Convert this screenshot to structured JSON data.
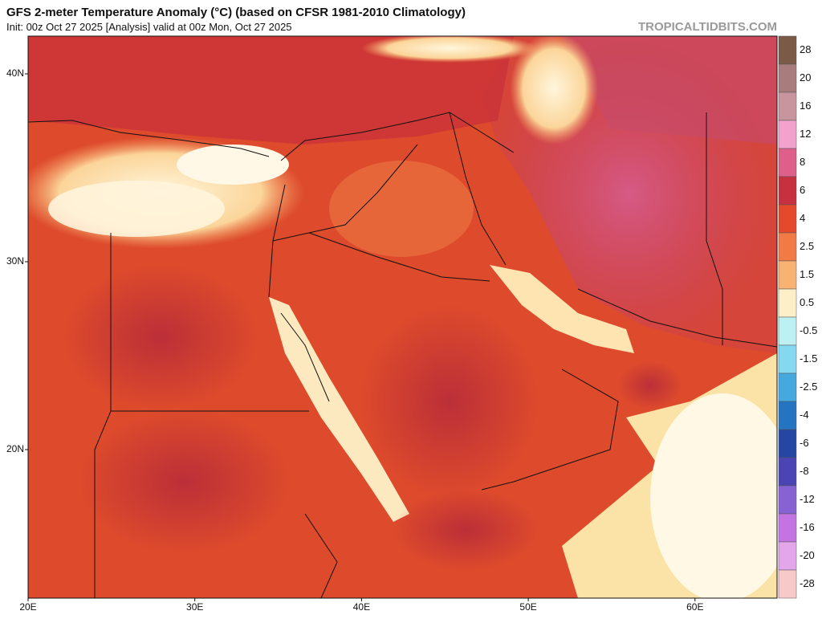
{
  "header": {
    "title": "GFS 2-meter Temperature Anomaly (°C) (based on CFSR 1981-2010 Climatology)",
    "subtitle": "Init: 00z Oct 27 2025  [Analysis]   valid at 00z Mon, Oct 27 2025",
    "watermark": "TROPICALTIDBITS.COM"
  },
  "map": {
    "latitude_labels": [
      "40N",
      "30N",
      "20N"
    ],
    "longitude_labels": [
      "20E",
      "30E",
      "40E",
      "50E",
      "60E"
    ]
  },
  "colorbar": {
    "levels": [
      28,
      20,
      16,
      12,
      8,
      6,
      4,
      2.5,
      1.5,
      0.5,
      -0.5,
      -1.5,
      -2.5,
      -4,
      -6,
      -8,
      -12,
      -16,
      -20,
      -28
    ],
    "colors": [
      "#7b5a48",
      "#a87c7c",
      "#c8949e",
      "#f2a2cc",
      "#de5f8a",
      "#c7303e",
      "#e3492a",
      "#f27a44",
      "#f8b372",
      "#fdf0c8",
      "#bdf0f2",
      "#84d8f0",
      "#45a9e0",
      "#2474c2",
      "#2546a2",
      "#4a44b4",
      "#8762d2",
      "#c374e2",
      "#e4a6ea",
      "#f8c9c9"
    ]
  }
}
